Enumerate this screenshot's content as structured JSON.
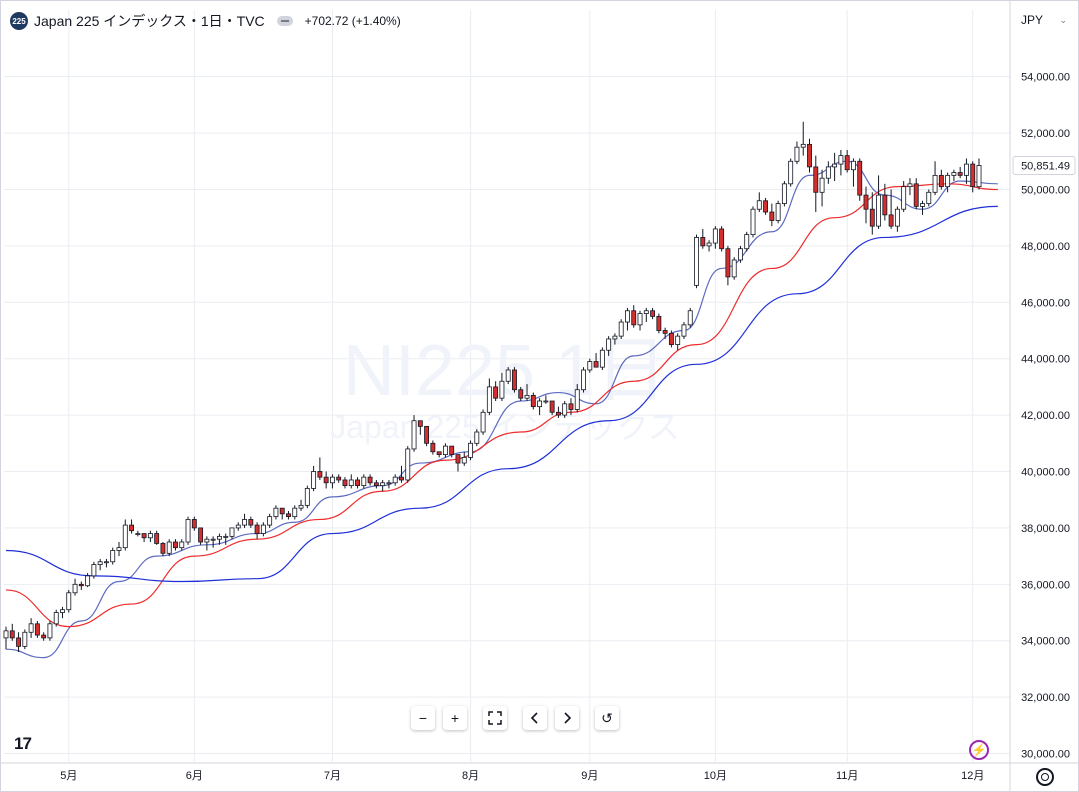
{
  "header": {
    "symbol_badge": "225",
    "title": "Japan 225 インデックス・1日・TVC",
    "change": "+702.72 (+1.40%)"
  },
  "currency": "JPY",
  "watermark": {
    "symbol": "NI225",
    "interval": "1日",
    "description": "Japan 225 インデックス"
  },
  "controls": {
    "zoom_out": "−",
    "zoom_in": "+",
    "reset": "↺"
  },
  "colors": {
    "up_body": "#ffffff",
    "down_body": "#d32f2f",
    "wick": "#131722",
    "ma_short": "#5c6bc0",
    "ma_mid": "#ef2b2b",
    "ma_long": "#1e2fd8",
    "grid": "#e9edf2"
  },
  "chart_data": {
    "type": "candlestick",
    "y_axis_ticks": [
      "54,000.00",
      "52,000.00",
      "50,000.00",
      "48,000.00",
      "46,000.00",
      "44,000.00",
      "42,000.00",
      "40,000.00",
      "38,000.00",
      "36,000.00",
      "34,000.00",
      "32,000.00",
      "30,000.00"
    ],
    "ylim": [
      30000,
      55300
    ],
    "x_axis_labels": [
      "5月",
      "6月",
      "7月",
      "8月",
      "9月",
      "10月",
      "11月",
      "12月"
    ],
    "last_price_label": "50,851.49",
    "last_price": 50851.49,
    "candles": [
      [
        34100,
        34500,
        33700,
        34350
      ],
      [
        34350,
        34600,
        34000,
        34100
      ],
      [
        34100,
        34300,
        33600,
        33800
      ],
      [
        33800,
        34400,
        33700,
        34300
      ],
      [
        34300,
        34800,
        34100,
        34600
      ],
      [
        34600,
        34700,
        34100,
        34200
      ],
      [
        34200,
        34300,
        34000,
        34100
      ],
      [
        34100,
        34700,
        34000,
        34600
      ],
      [
        34600,
        35100,
        34500,
        35000
      ],
      [
        35000,
        35200,
        34800,
        35100
      ],
      [
        35100,
        35800,
        35000,
        35700
      ],
      [
        35700,
        36200,
        35600,
        36000
      ],
      [
        36000,
        36100,
        35800,
        35950
      ],
      [
        35950,
        36400,
        35900,
        36300
      ],
      [
        36300,
        36800,
        36200,
        36700
      ],
      [
        36700,
        36900,
        36500,
        36800
      ],
      [
        36800,
        36900,
        36600,
        36800
      ],
      [
        36800,
        37300,
        36700,
        37200
      ],
      [
        37200,
        37500,
        37000,
        37300
      ],
      [
        37300,
        38300,
        37200,
        38100
      ],
      [
        38100,
        38300,
        37800,
        37900
      ],
      [
        37800,
        37900,
        37700,
        37800
      ],
      [
        37800,
        37800,
        37500,
        37650
      ],
      [
        37650,
        37900,
        37500,
        37800
      ],
      [
        37800,
        37900,
        37400,
        37450
      ],
      [
        37450,
        37500,
        37000,
        37100
      ],
      [
        37100,
        37600,
        37000,
        37500
      ],
      [
        37500,
        37600,
        37200,
        37300
      ],
      [
        37300,
        37600,
        37200,
        37500
      ],
      [
        37500,
        38400,
        37400,
        38300
      ],
      [
        38300,
        38400,
        37900,
        38000
      ],
      [
        38000,
        38000,
        37400,
        37500
      ],
      [
        37500,
        37700,
        37200,
        37600
      ],
      [
        37600,
        37700,
        37300,
        37600
      ],
      [
        37600,
        37800,
        37400,
        37700
      ],
      [
        37700,
        37800,
        37400,
        37700
      ],
      [
        37700,
        38000,
        37600,
        38000
      ],
      [
        38000,
        38200,
        37900,
        38100
      ],
      [
        38100,
        38500,
        38000,
        38300
      ],
      [
        38300,
        38400,
        38000,
        38100
      ],
      [
        38100,
        38200,
        37600,
        37800
      ],
      [
        37800,
        38200,
        37700,
        38100
      ],
      [
        38100,
        38500,
        38000,
        38400
      ],
      [
        38400,
        38800,
        38300,
        38700
      ],
      [
        38700,
        38700,
        38300,
        38500
      ],
      [
        38500,
        38600,
        38300,
        38400
      ],
      [
        38400,
        38800,
        38300,
        38700
      ],
      [
        38700,
        39000,
        38600,
        38800
      ],
      [
        38800,
        39500,
        38700,
        39400
      ],
      [
        39400,
        40200,
        39300,
        40000
      ],
      [
        40000,
        40500,
        39700,
        39800
      ],
      [
        39800,
        40000,
        39400,
        39600
      ],
      [
        39600,
        39900,
        39400,
        39800
      ],
      [
        39800,
        39900,
        39600,
        39700
      ],
      [
        39700,
        39800,
        39400,
        39500
      ],
      [
        39500,
        39900,
        39400,
        39700
      ],
      [
        39700,
        39800,
        39400,
        39500
      ],
      [
        39500,
        39900,
        39400,
        39800
      ],
      [
        39800,
        39900,
        39500,
        39600
      ],
      [
        39600,
        39700,
        39400,
        39500
      ],
      [
        39500,
        39700,
        39300,
        39600
      ],
      [
        39600,
        39700,
        39400,
        39600
      ],
      [
        39600,
        39900,
        39500,
        39800
      ],
      [
        39800,
        40200,
        39600,
        39700
      ],
      [
        39700,
        40900,
        39600,
        40800
      ],
      [
        40800,
        42000,
        40700,
        41800
      ],
      [
        41800,
        41800,
        41300,
        41600
      ],
      [
        41600,
        41600,
        40900,
        41000
      ],
      [
        41000,
        41100,
        40600,
        40700
      ],
      [
        40700,
        40700,
        40500,
        40600
      ],
      [
        40600,
        41000,
        40500,
        40900
      ],
      [
        40900,
        40900,
        40500,
        40600
      ],
      [
        40600,
        40600,
        40000,
        40300
      ],
      [
        40300,
        40700,
        40200,
        40500
      ],
      [
        40500,
        41100,
        40400,
        41000
      ],
      [
        41000,
        41500,
        40900,
        41400
      ],
      [
        41400,
        42200,
        41300,
        42100
      ],
      [
        42100,
        43300,
        42000,
        43000
      ],
      [
        43000,
        43200,
        42500,
        42600
      ],
      [
        42600,
        43500,
        42500,
        43200
      ],
      [
        43200,
        43700,
        43100,
        43600
      ],
      [
        43600,
        43700,
        42800,
        42900
      ],
      [
        42900,
        43000,
        42500,
        42600
      ],
      [
        42600,
        43100,
        42500,
        42700
      ],
      [
        42700,
        42800,
        42200,
        42300
      ],
      [
        42300,
        42600,
        42000,
        42500
      ],
      [
        42500,
        42700,
        42400,
        42500
      ],
      [
        42500,
        42500,
        42000,
        42100
      ],
      [
        42100,
        42300,
        41900,
        42000
      ],
      [
        42000,
        42500,
        41900,
        42400
      ],
      [
        42400,
        42600,
        42000,
        42200
      ],
      [
        42200,
        43100,
        42100,
        42900
      ],
      [
        42900,
        43700,
        42800,
        43600
      ],
      [
        43600,
        44000,
        43500,
        43900
      ],
      [
        43900,
        44200,
        43700,
        43700
      ],
      [
        43700,
        44400,
        43600,
        44300
      ],
      [
        44300,
        44800,
        44100,
        44700
      ],
      [
        44700,
        44900,
        44500,
        44800
      ],
      [
        44800,
        45400,
        44700,
        45300
      ],
      [
        45300,
        45800,
        45000,
        45700
      ],
      [
        45700,
        45900,
        45100,
        45200
      ],
      [
        45200,
        45700,
        45000,
        45600
      ],
      [
        45600,
        45800,
        45300,
        45700
      ],
      [
        45700,
        45800,
        45400,
        45500
      ],
      [
        45500,
        45600,
        44900,
        45000
      ],
      [
        45000,
        45100,
        44700,
        44900
      ],
      [
        44900,
        45000,
        44400,
        44500
      ],
      [
        44500,
        44900,
        44300,
        44800
      ],
      [
        44800,
        45300,
        44700,
        45200
      ],
      [
        45200,
        45800,
        45100,
        45700
      ],
      [
        46600,
        48400,
        46500,
        48300
      ],
      [
        48300,
        48600,
        47900,
        48000
      ],
      [
        48000,
        48200,
        47800,
        48100
      ],
      [
        48100,
        48700,
        47900,
        48600
      ],
      [
        48600,
        48700,
        47800,
        47900
      ],
      [
        47900,
        48000,
        46600,
        46900
      ],
      [
        46900,
        47600,
        46800,
        47500
      ],
      [
        47500,
        48000,
        47400,
        47900
      ],
      [
        47900,
        48500,
        47800,
        48400
      ],
      [
        48400,
        49400,
        48300,
        49300
      ],
      [
        49300,
        49900,
        49200,
        49600
      ],
      [
        49600,
        49700,
        49100,
        49200
      ],
      [
        49200,
        49500,
        48700,
        48900
      ],
      [
        48900,
        49600,
        48800,
        49500
      ],
      [
        49500,
        50300,
        49400,
        50200
      ],
      [
        50200,
        51100,
        50100,
        51000
      ],
      [
        51000,
        51700,
        50900,
        51500
      ],
      [
        51500,
        52400,
        51200,
        51600
      ],
      [
        51600,
        51800,
        50600,
        50800
      ],
      [
        50800,
        51200,
        49200,
        49900
      ],
      [
        49900,
        50700,
        49400,
        50400
      ],
      [
        50400,
        51000,
        50200,
        50800
      ],
      [
        50800,
        51300,
        50300,
        50900
      ],
      [
        50900,
        51400,
        50500,
        51200
      ],
      [
        51200,
        51400,
        50600,
        50700
      ],
      [
        50700,
        51100,
        50100,
        51000
      ],
      [
        51000,
        51100,
        49600,
        49800
      ],
      [
        49800,
        50100,
        48800,
        49300
      ],
      [
        49300,
        49900,
        48400,
        48700
      ],
      [
        48700,
        50500,
        48600,
        49800
      ],
      [
        49800,
        50200,
        48900,
        49100
      ],
      [
        49100,
        50000,
        48600,
        48700
      ],
      [
        48700,
        49400,
        48500,
        49300
      ],
      [
        49300,
        50300,
        49200,
        50100
      ],
      [
        50100,
        50400,
        49800,
        50200
      ],
      [
        50200,
        50400,
        49300,
        49400
      ],
      [
        49400,
        49600,
        49100,
        49500
      ],
      [
        49500,
        50000,
        49400,
        49900
      ],
      [
        49900,
        51000,
        49800,
        50500
      ],
      [
        50500,
        50700,
        50000,
        50100
      ],
      [
        50100,
        50600,
        49900,
        50500
      ],
      [
        50500,
        50700,
        50300,
        50600
      ],
      [
        50600,
        50800,
        50400,
        50500
      ],
      [
        50500,
        51100,
        50200,
        50900
      ],
      [
        50900,
        51000,
        49900,
        50100
      ],
      [
        50100,
        51100,
        50000,
        50851
      ]
    ],
    "moving_averages": [
      {
        "name": "short",
        "values": [
          [
            0,
            33700
          ],
          [
            6,
            33400
          ],
          [
            12,
            34700
          ],
          [
            18,
            36100
          ],
          [
            24,
            37000
          ],
          [
            32,
            37400
          ],
          [
            40,
            37800
          ],
          [
            46,
            38200
          ],
          [
            52,
            39100
          ],
          [
            60,
            39500
          ],
          [
            66,
            40300
          ],
          [
            74,
            40700
          ],
          [
            82,
            42500
          ],
          [
            88,
            42800
          ],
          [
            94,
            42400
          ],
          [
            100,
            44100
          ],
          [
            108,
            45000
          ],
          [
            114,
            47200
          ],
          [
            122,
            48500
          ],
          [
            128,
            50500
          ],
          [
            134,
            51000
          ],
          [
            140,
            49800
          ],
          [
            146,
            49300
          ],
          [
            152,
            50300
          ],
          [
            158,
            50200
          ]
        ]
      },
      {
        "name": "mid",
        "values": [
          [
            0,
            35800
          ],
          [
            10,
            34500
          ],
          [
            20,
            35300
          ],
          [
            30,
            37000
          ],
          [
            40,
            37600
          ],
          [
            50,
            38300
          ],
          [
            60,
            39300
          ],
          [
            70,
            40400
          ],
          [
            82,
            41400
          ],
          [
            90,
            42100
          ],
          [
            100,
            43200
          ],
          [
            110,
            44500
          ],
          [
            122,
            47200
          ],
          [
            132,
            49000
          ],
          [
            142,
            50100
          ],
          [
            150,
            50200
          ],
          [
            158,
            50000
          ]
        ]
      },
      {
        "name": "long",
        "values": [
          [
            0,
            37200
          ],
          [
            14,
            36300
          ],
          [
            28,
            36100
          ],
          [
            40,
            36200
          ],
          [
            52,
            37800
          ],
          [
            66,
            38700
          ],
          [
            80,
            40100
          ],
          [
            96,
            41800
          ],
          [
            110,
            43800
          ],
          [
            126,
            46300
          ],
          [
            140,
            48300
          ],
          [
            158,
            49400
          ]
        ]
      }
    ]
  }
}
